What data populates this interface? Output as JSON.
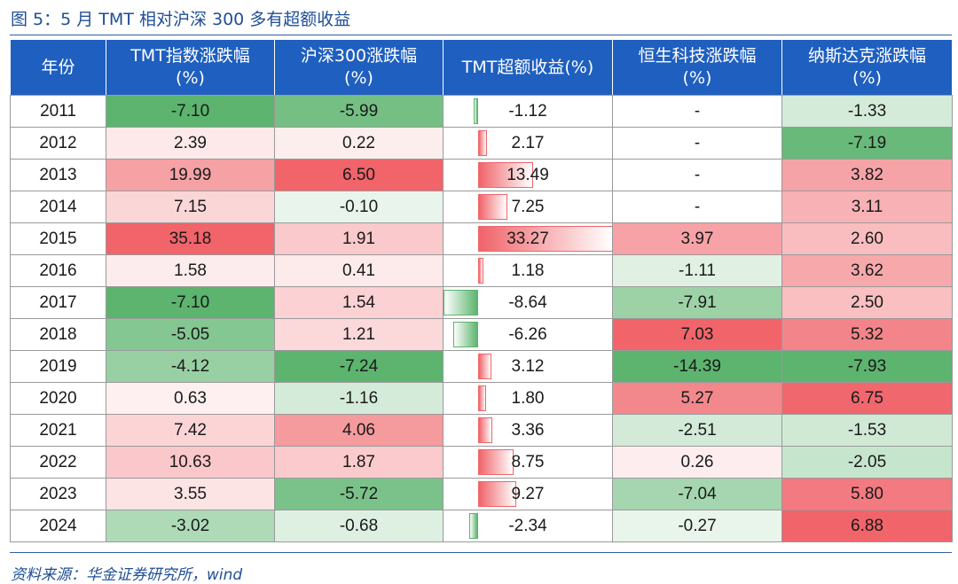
{
  "figure": {
    "title": "图 5：5 月 TMT 相对沪深 300 多有超额收益",
    "source": "资料来源：华金证券研究所，wind"
  },
  "colors": {
    "header_bg": "#1f5fbf",
    "header_text": "#ffffff",
    "positive": "#f0646a",
    "negative": "#5cb46e",
    "neutral": "#ffffff"
  },
  "chart_data": {
    "type": "table",
    "columns": [
      {
        "line1": "年份",
        "line2": ""
      },
      {
        "line1": "TMT指数涨跌幅",
        "line2": "(%)"
      },
      {
        "line1": "沪深300涨跌幅",
        "line2": "(%)"
      },
      {
        "line1": "TMT超额收益(%)",
        "line2": ""
      },
      {
        "line1": "恒生科技涨跌幅",
        "line2": "(%)"
      },
      {
        "line1": "纳斯达克涨跌幅",
        "line2": "(%)"
      }
    ],
    "rows": [
      {
        "year": "2011",
        "tmt": "-7.10",
        "hs300": "-5.99",
        "excess": "-1.12",
        "hstech": "-",
        "nasdaq": "-1.33"
      },
      {
        "year": "2012",
        "tmt": "2.39",
        "hs300": "0.22",
        "excess": "2.17",
        "hstech": "-",
        "nasdaq": "-7.19"
      },
      {
        "year": "2013",
        "tmt": "19.99",
        "hs300": "6.50",
        "excess": "13.49",
        "hstech": "-",
        "nasdaq": "3.82"
      },
      {
        "year": "2014",
        "tmt": "7.15",
        "hs300": "-0.10",
        "excess": "7.25",
        "hstech": "-",
        "nasdaq": "3.11"
      },
      {
        "year": "2015",
        "tmt": "35.18",
        "hs300": "1.91",
        "excess": "33.27",
        "hstech": "3.97",
        "nasdaq": "2.60"
      },
      {
        "year": "2016",
        "tmt": "1.58",
        "hs300": "0.41",
        "excess": "1.18",
        "hstech": "-1.11",
        "nasdaq": "3.62"
      },
      {
        "year": "2017",
        "tmt": "-7.10",
        "hs300": "1.54",
        "excess": "-8.64",
        "hstech": "-7.91",
        "nasdaq": "2.50"
      },
      {
        "year": "2018",
        "tmt": "-5.05",
        "hs300": "1.21",
        "excess": "-6.26",
        "hstech": "7.03",
        "nasdaq": "5.32"
      },
      {
        "year": "2019",
        "tmt": "-4.12",
        "hs300": "-7.24",
        "excess": "3.12",
        "hstech": "-14.39",
        "nasdaq": "-7.93"
      },
      {
        "year": "2020",
        "tmt": "0.63",
        "hs300": "-1.16",
        "excess": "1.80",
        "hstech": "5.27",
        "nasdaq": "6.75"
      },
      {
        "year": "2021",
        "tmt": "7.42",
        "hs300": "4.06",
        "excess": "3.36",
        "hstech": "-2.51",
        "nasdaq": "-1.53"
      },
      {
        "year": "2022",
        "tmt": "10.63",
        "hs300": "1.87",
        "excess": "8.75",
        "hstech": "0.26",
        "nasdaq": "-2.05"
      },
      {
        "year": "2023",
        "tmt": "3.55",
        "hs300": "-5.72",
        "excess": "9.27",
        "hstech": "-7.04",
        "nasdaq": "5.80"
      },
      {
        "year": "2024",
        "tmt": "-3.02",
        "hs300": "-0.68",
        "excess": "-2.34",
        "hstech": "-0.27",
        "nasdaq": "6.88"
      }
    ]
  }
}
